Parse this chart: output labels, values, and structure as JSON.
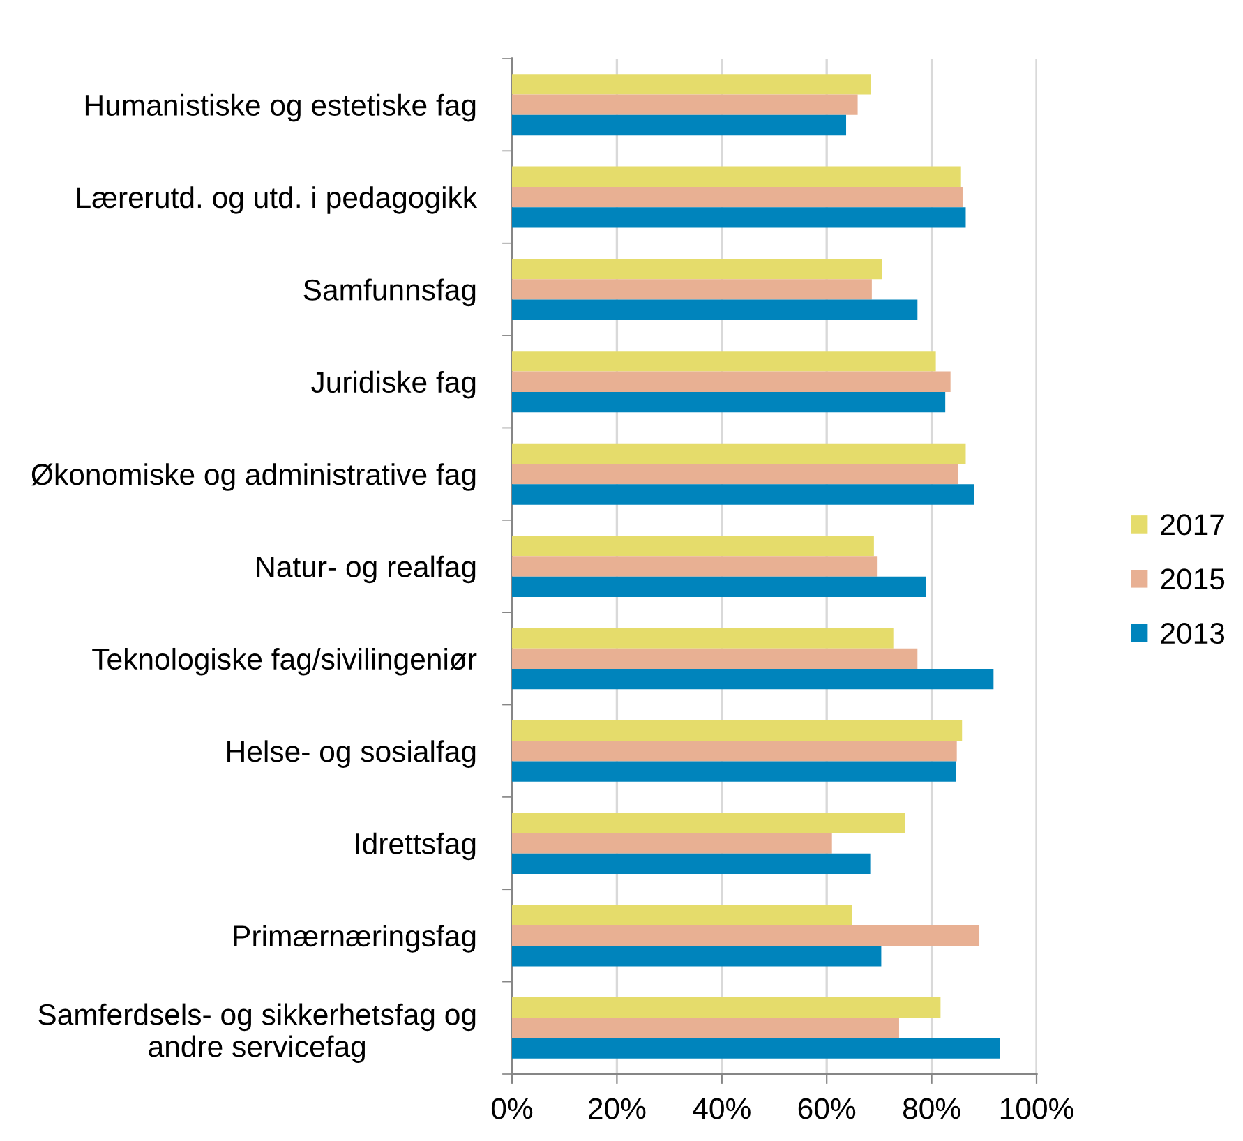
{
  "chart_data": {
    "type": "bar",
    "orientation": "horizontal",
    "categories": [
      "Humanistiske og estetiske fag",
      "Lærerutd. og utd. i pedagogikk",
      "Samfunnsfag",
      "Juridiske fag",
      "Økonomiske og administrative fag",
      "Natur- og realfag",
      "Teknologiske fag/sivilingeniør",
      "Helse- og sosialfag",
      "Idrettsfag",
      "Primærnæringsfag",
      "Samferdsels- og sikkerhetsfag og\nandre servicefag"
    ],
    "series": [
      {
        "name": "2017",
        "color": "#e5dc6b",
        "values": [
          68.4,
          85.6,
          70.5,
          80.8,
          86.5,
          69.0,
          72.7,
          85.8,
          75.0,
          64.8,
          81.7
        ]
      },
      {
        "name": "2015",
        "color": "#e8b093",
        "values": [
          65.9,
          85.9,
          68.6,
          83.6,
          85.0,
          69.7,
          77.3,
          84.8,
          61.0,
          89.1,
          73.8
        ]
      },
      {
        "name": "2013",
        "color": "#0084bc",
        "values": [
          63.7,
          86.5,
          77.3,
          82.6,
          88.1,
          78.9,
          91.8,
          84.6,
          68.3,
          70.4,
          93.0
        ]
      }
    ],
    "xlim": [
      0,
      100
    ],
    "xticks": [
      {
        "value": 0,
        "label": "0%"
      },
      {
        "value": 20,
        "label": "20%"
      },
      {
        "value": 40,
        "label": "40%"
      },
      {
        "value": 60,
        "label": "60%"
      },
      {
        "value": 80,
        "label": "80%"
      },
      {
        "value": 100,
        "label": "100%"
      }
    ],
    "grid": "x",
    "legend": "right"
  }
}
